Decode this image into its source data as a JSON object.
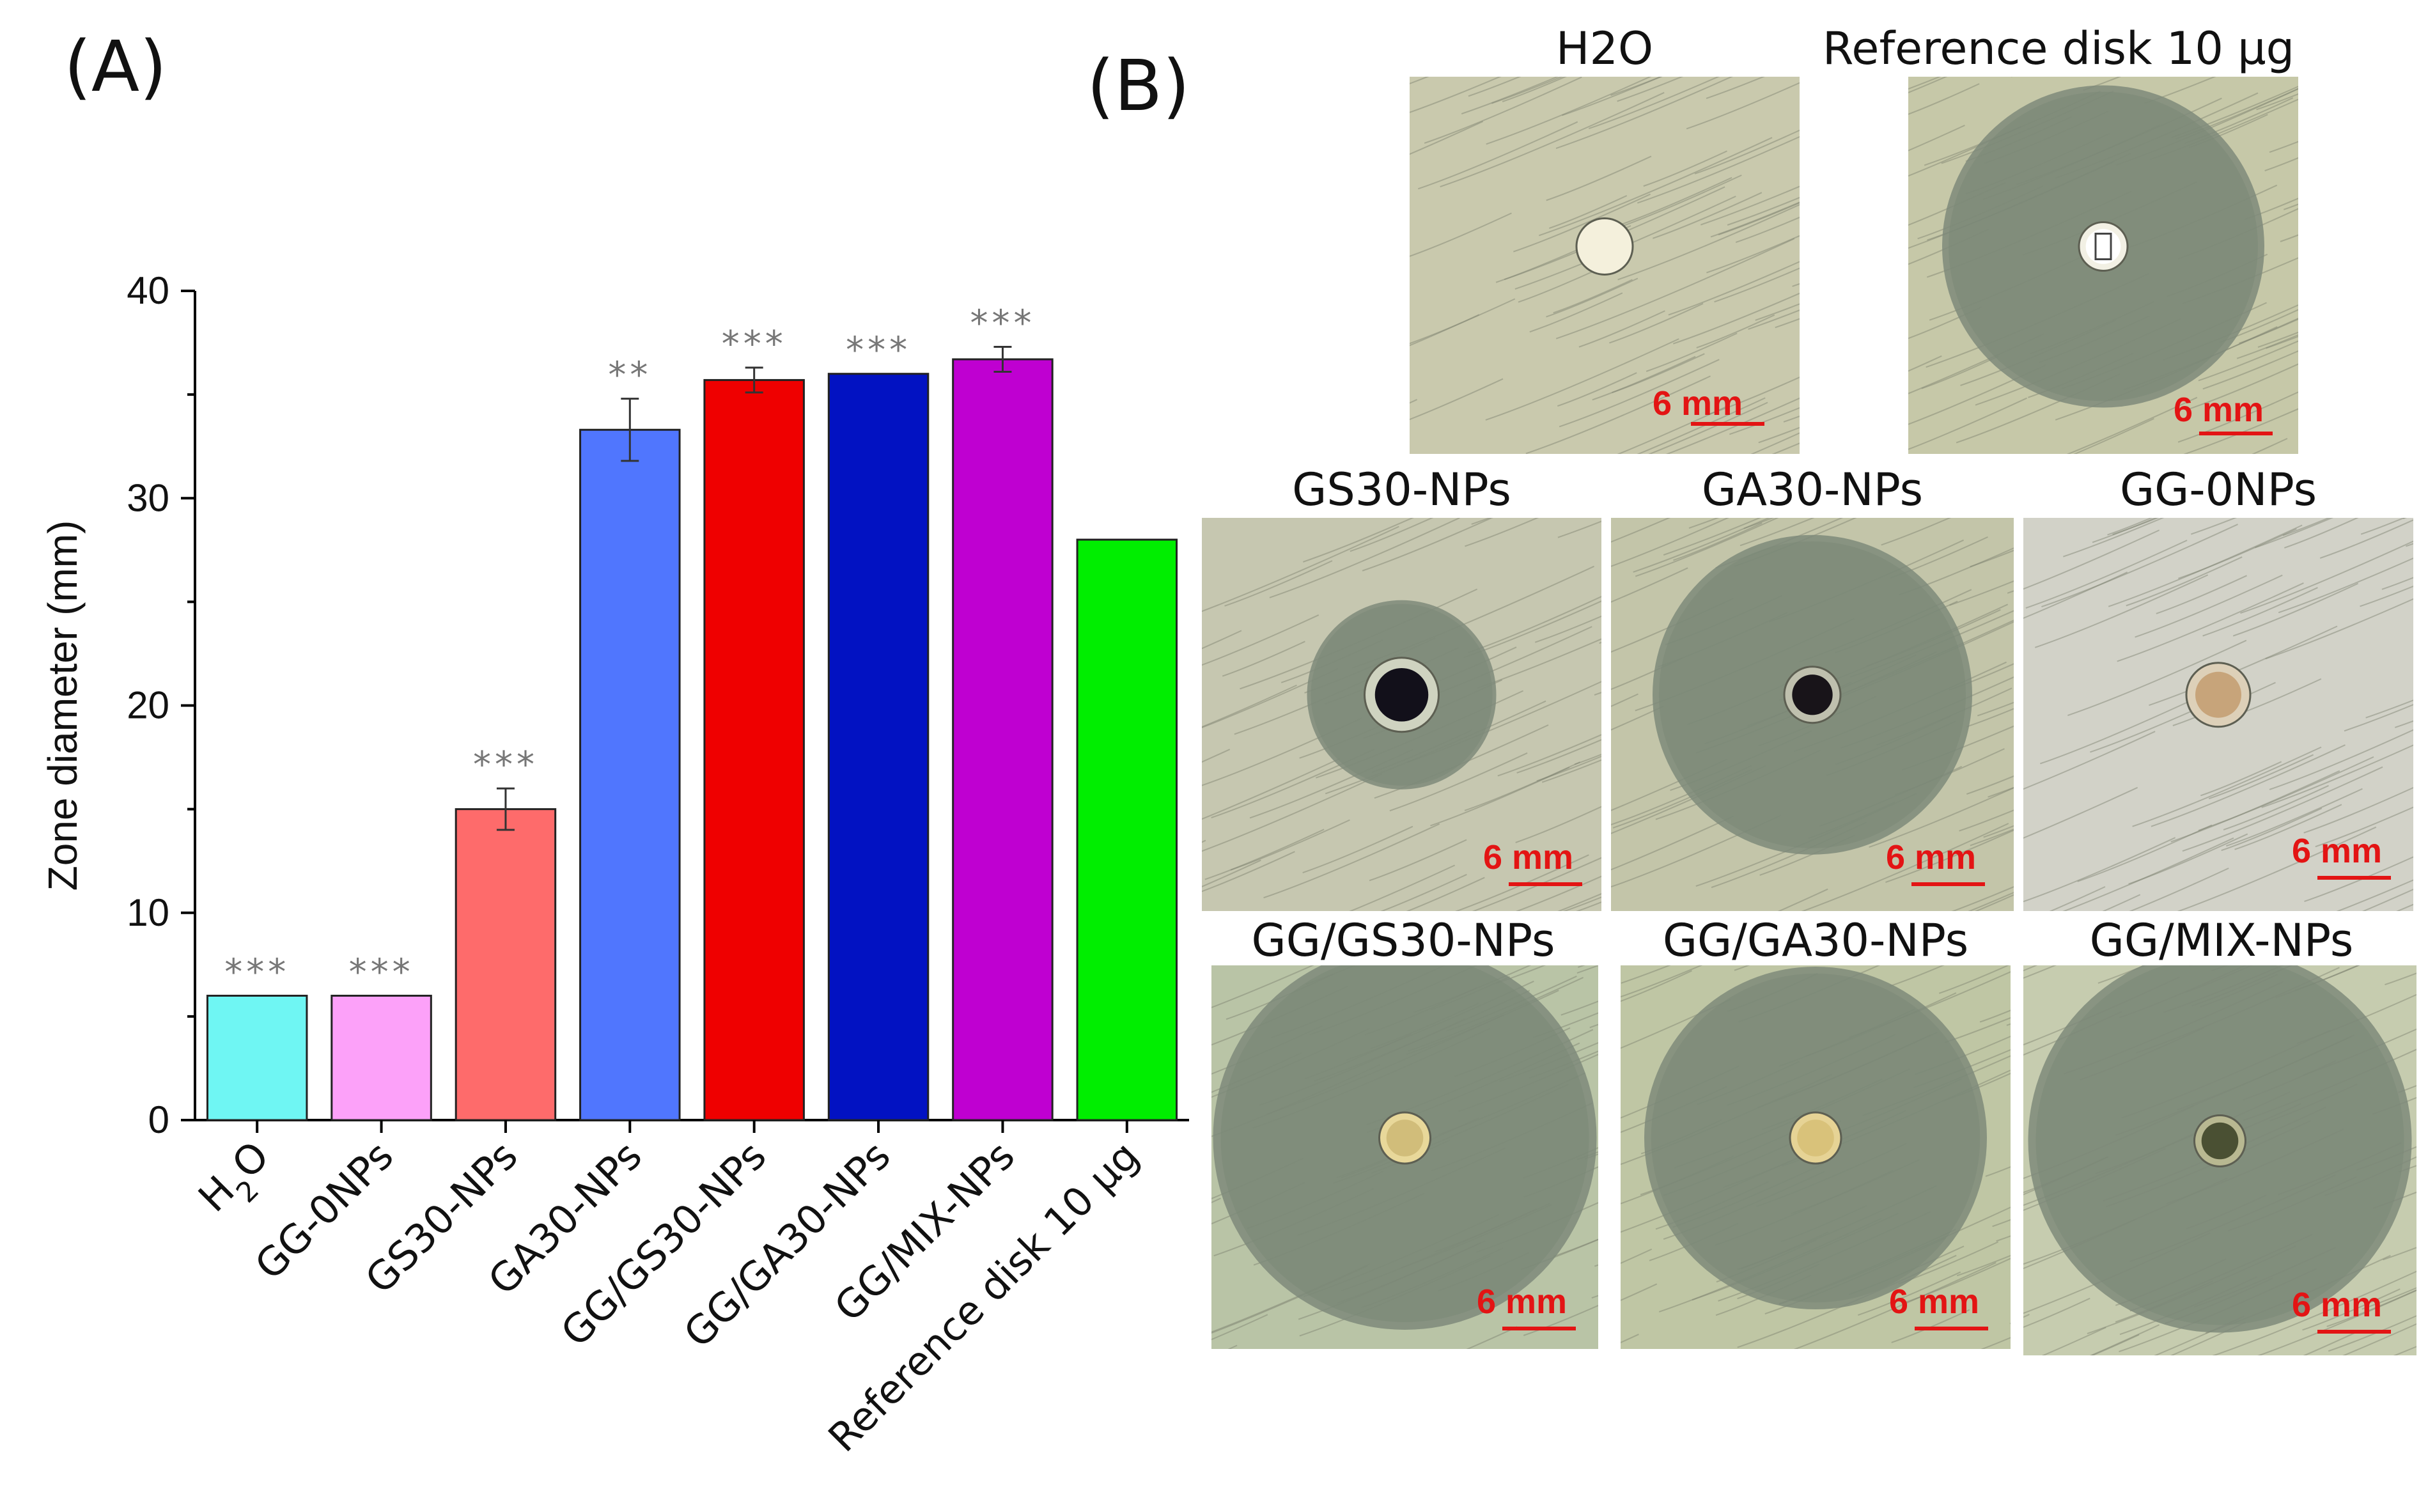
{
  "panel_a_label": "(A)",
  "panel_b_label": "(B)",
  "chart_data": {
    "type": "bar",
    "title": "",
    "xlabel": "",
    "ylabel": "Zone diameter (mm)",
    "ylim": [
      0,
      40
    ],
    "yticks": [
      0,
      10,
      20,
      30,
      40
    ],
    "grid": false,
    "categories": [
      "H2O",
      "GG-0NPs",
      "GS30-NPs",
      "GA30-NPs",
      "GG/GS30-NPs",
      "GG/GA30-NPs",
      "GG/MIX-NPs",
      "Reference disk 10 µg"
    ],
    "values": [
      6,
      6,
      15,
      33.3,
      35.7,
      36,
      36.7,
      28
    ],
    "errors": [
      0,
      0,
      1.0,
      1.5,
      0.6,
      0,
      0.6,
      0
    ],
    "significance": [
      "***",
      "***",
      "***",
      "**",
      "***",
      "***",
      "***",
      ""
    ],
    "colors": [
      "#6ff6f3",
      "#fca1f9",
      "#fe6b6b",
      "#5076fe",
      "#ef0000",
      "#0212c2",
      "#bf00d1",
      "#00ee00"
    ]
  },
  "plates": [
    {
      "key": "h2o",
      "title": "H2O",
      "scale": "6 mm"
    },
    {
      "key": "ref",
      "title": "Reference disk 10 µg",
      "scale": "6 mm"
    },
    {
      "key": "gs30",
      "title": "GS30-NPs",
      "scale": "6 mm"
    },
    {
      "key": "ga30",
      "title": "GA30-NPs",
      "scale": "6 mm"
    },
    {
      "key": "gg0",
      "title": "GG-0NPs",
      "scale": "6 mm"
    },
    {
      "key": "gggs30",
      "title": "GG/GS30-NPs",
      "scale": "6 mm"
    },
    {
      "key": "ggga30",
      "title": "GG/GA30-NPs",
      "scale": "6 mm"
    },
    {
      "key": "ggmix",
      "title": "GG/MIX-NPs",
      "scale": "6 mm"
    }
  ]
}
